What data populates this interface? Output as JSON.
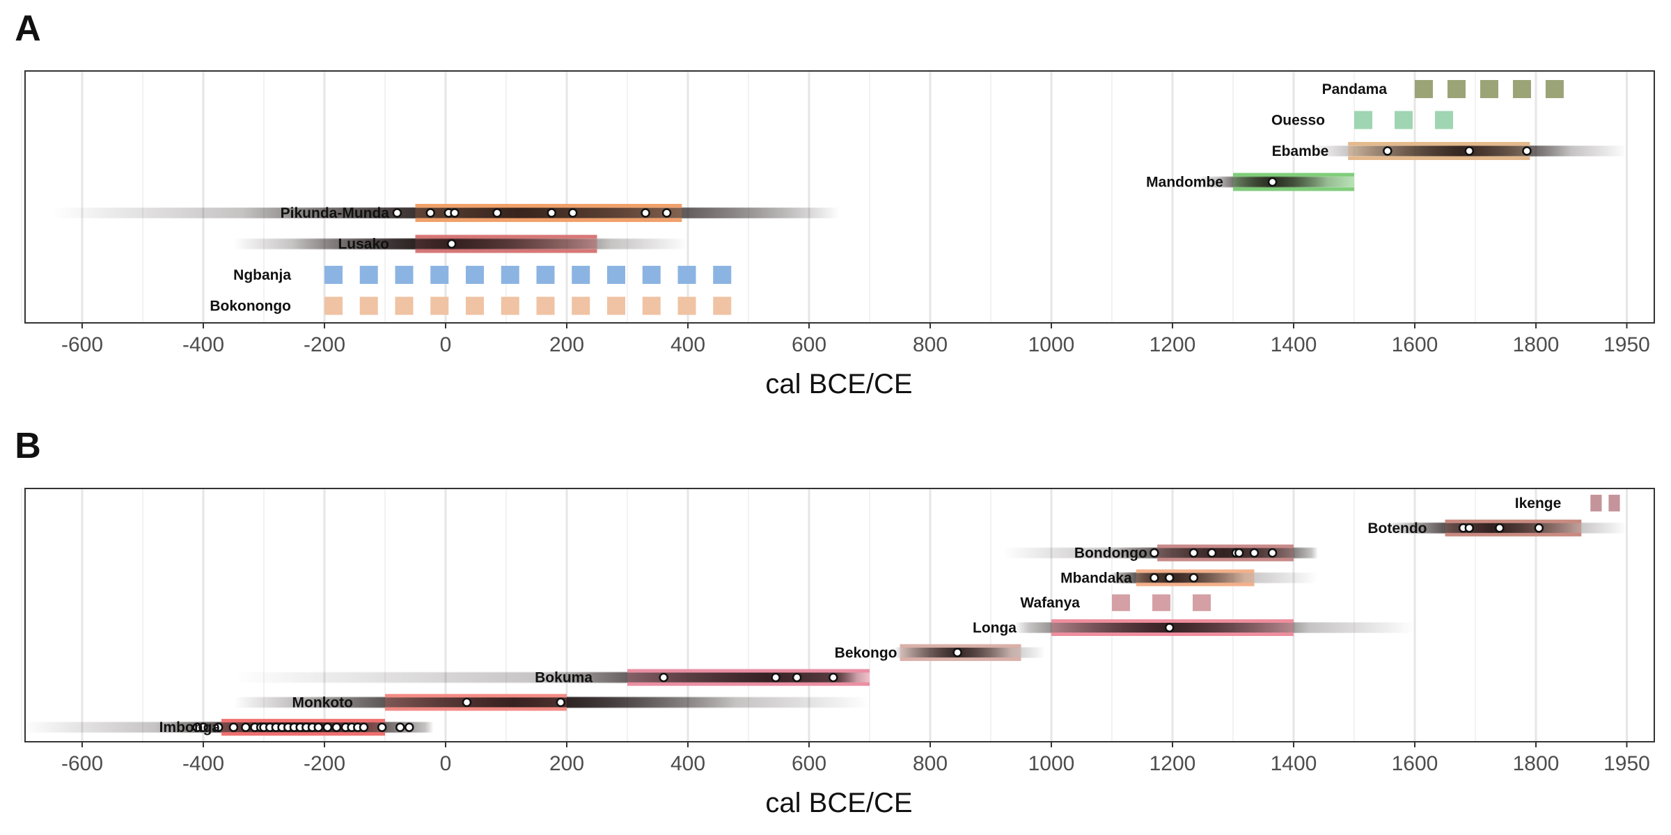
{
  "chart_data": [
    {
      "type": "timeline",
      "panel_label": "A",
      "xlabel": "cal BCE/CE",
      "xlim": [
        -700,
        1960
      ],
      "ticks": [
        -600,
        -400,
        -200,
        0,
        200,
        400,
        600,
        800,
        1000,
        1200,
        1400,
        1600,
        1800,
        1950
      ],
      "tick_labels": [
        "-600",
        "-400",
        "-200",
        "0",
        "200",
        "400",
        "600",
        "800",
        "1000",
        "1200",
        "1400",
        "1600",
        "1800",
        "1950"
      ],
      "grid": true,
      "rows": [
        {
          "label": "Pandama",
          "start": 1600,
          "end": 1870,
          "style": "dashed",
          "color": "#9ba477",
          "dates": [],
          "density": null
        },
        {
          "label": "Ouesso",
          "start": 1500,
          "end": 1700,
          "style": "dashed",
          "color": "#9fd5b2",
          "dates": [],
          "density": null
        },
        {
          "label": "Ebambe",
          "start": 1490,
          "end": 1790,
          "style": "solid",
          "color": "#e4b98c",
          "dates": [
            1555,
            1690,
            1785
          ],
          "density": [
            1430,
            1950
          ]
        },
        {
          "label": "Mandombe",
          "start": 1300,
          "end": 1500,
          "style": "solid",
          "color": "#7fcd7a",
          "dates": [
            1365
          ],
          "density": [
            1240,
            1500
          ]
        },
        {
          "label": "Pikunda-Munda",
          "start": -50,
          "end": 390,
          "style": "solid",
          "color": "#f2a06a",
          "dates": [
            -80,
            -25,
            5,
            15,
            85,
            175,
            210,
            330,
            365
          ],
          "density": [
            -650,
            650
          ]
        },
        {
          "label": "Lusako",
          "start": -50,
          "end": 250,
          "style": "solid",
          "color": "#d77777",
          "dates": [
            10
          ],
          "density": [
            -350,
            400
          ]
        },
        {
          "label": "Ngbanja",
          "start": -200,
          "end": 500,
          "style": "dashed",
          "color": "#8cb4e2",
          "dates": [],
          "density": null
        },
        {
          "label": "Bokonongo",
          "start": -200,
          "end": 500,
          "style": "dashed",
          "color": "#efc3a3",
          "dates": [],
          "density": null
        }
      ]
    },
    {
      "type": "timeline",
      "panel_label": "B",
      "xlabel": "cal BCE/CE",
      "xlim": [
        -700,
        1960
      ],
      "ticks": [
        -600,
        -400,
        -200,
        0,
        200,
        400,
        600,
        800,
        1000,
        1200,
        1400,
        1600,
        1800,
        1950
      ],
      "tick_labels": [
        "-600",
        "-400",
        "-200",
        "0",
        "200",
        "400",
        "600",
        "800",
        "1000",
        "1200",
        "1400",
        "1600",
        "1800",
        "1950"
      ],
      "grid": true,
      "rows": [
        {
          "label": "Ikenge",
          "start": 1890,
          "end": 1950,
          "style": "dashed",
          "color": "#c4949a",
          "dates": [],
          "density": null
        },
        {
          "label": "Botendo",
          "start": 1650,
          "end": 1875,
          "style": "solid",
          "color": "#c98a80",
          "dates": [
            1680,
            1690,
            1740,
            1805
          ],
          "density": [
            1550,
            1950
          ]
        },
        {
          "label": "Bondongo",
          "start": 1175,
          "end": 1400,
          "style": "solid",
          "color": "#c98a8a",
          "dates": [
            1170,
            1235,
            1265,
            1305,
            1310,
            1335,
            1365
          ],
          "density": [
            920,
            1440
          ]
        },
        {
          "label": "Mbandaka",
          "start": 1140,
          "end": 1335,
          "style": "solid",
          "color": "#f2b08a",
          "dates": [
            1170,
            1195,
            1235
          ],
          "density": [
            1100,
            1440
          ]
        },
        {
          "label": "Wafanya",
          "start": 1100,
          "end": 1300,
          "style": "dashed",
          "color": "#d4a0a5",
          "dates": [],
          "density": null
        },
        {
          "label": "Longa",
          "start": 1000,
          "end": 1400,
          "style": "solid",
          "color": "#ee8e9e",
          "dates": [
            1195
          ],
          "density": [
            940,
            1600
          ]
        },
        {
          "label": "Bekongo",
          "start": 750,
          "end": 950,
          "style": "solid",
          "color": "#d9b0a8",
          "dates": [
            845
          ],
          "density": [
            740,
            990
          ]
        },
        {
          "label": "Bokuma",
          "start": 300,
          "end": 700,
          "style": "solid",
          "color": "#ea8fa3",
          "dates": [
            360,
            545,
            580,
            640
          ],
          "density": [
            -350,
            700
          ]
        },
        {
          "label": "Monkoto",
          "start": -100,
          "end": 200,
          "style": "solid",
          "color": "#f28b84",
          "dates": [
            35,
            190
          ],
          "density": [
            -350,
            700
          ]
        },
        {
          "label": "Imbonga",
          "start": -370,
          "end": -100,
          "style": "solid",
          "color": "#f07070",
          "dates": [
            -410,
            -400,
            -375,
            -350,
            -330,
            -315,
            -305,
            -300,
            -290,
            -280,
            -270,
            -260,
            -250,
            -240,
            -230,
            -220,
            -210,
            -195,
            -180,
            -165,
            -155,
            -145,
            -135,
            -105,
            -75,
            -60
          ],
          "density": [
            -700,
            -20
          ]
        }
      ]
    }
  ]
}
